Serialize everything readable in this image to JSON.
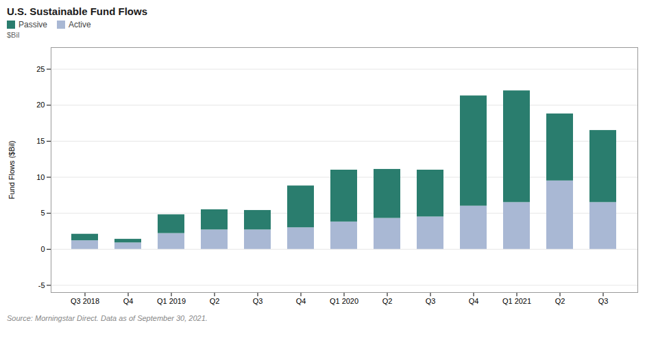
{
  "chart_data": {
    "type": "bar",
    "stacked": true,
    "title": "U.S. Sustainable Fund Flows",
    "source": "Source: Morningstar Direct. Data as of September 30, 2021.",
    "ylabel": "Fund Flows ($Bil)",
    "annotations": [
      "$Bil"
    ],
    "categories": [
      "Q3 2018",
      "Q4",
      "Q1 2019",
      "Q2",
      "Q3",
      "Q4",
      "Q1 2020",
      "Q2",
      "Q3",
      "Q4",
      "Q1 2021",
      "Q2",
      "Q3"
    ],
    "series": [
      {
        "name": "Active",
        "color": "#a9b8d4",
        "values": [
          1.2,
          0.9,
          2.2,
          2.7,
          2.7,
          3.0,
          3.8,
          4.3,
          4.5,
          6.0,
          6.5,
          9.5,
          6.5
        ]
      },
      {
        "name": "Passive",
        "color": "#2a7d6e",
        "values": [
          0.9,
          0.5,
          2.6,
          2.8,
          2.7,
          5.8,
          7.2,
          6.8,
          6.5,
          15.3,
          15.5,
          9.3,
          10.0
        ]
      }
    ],
    "ylim": [
      -6,
      28
    ],
    "yticks": [
      -5,
      0,
      5,
      10,
      15,
      20,
      25
    ],
    "grid": true,
    "legend": "upper left"
  }
}
